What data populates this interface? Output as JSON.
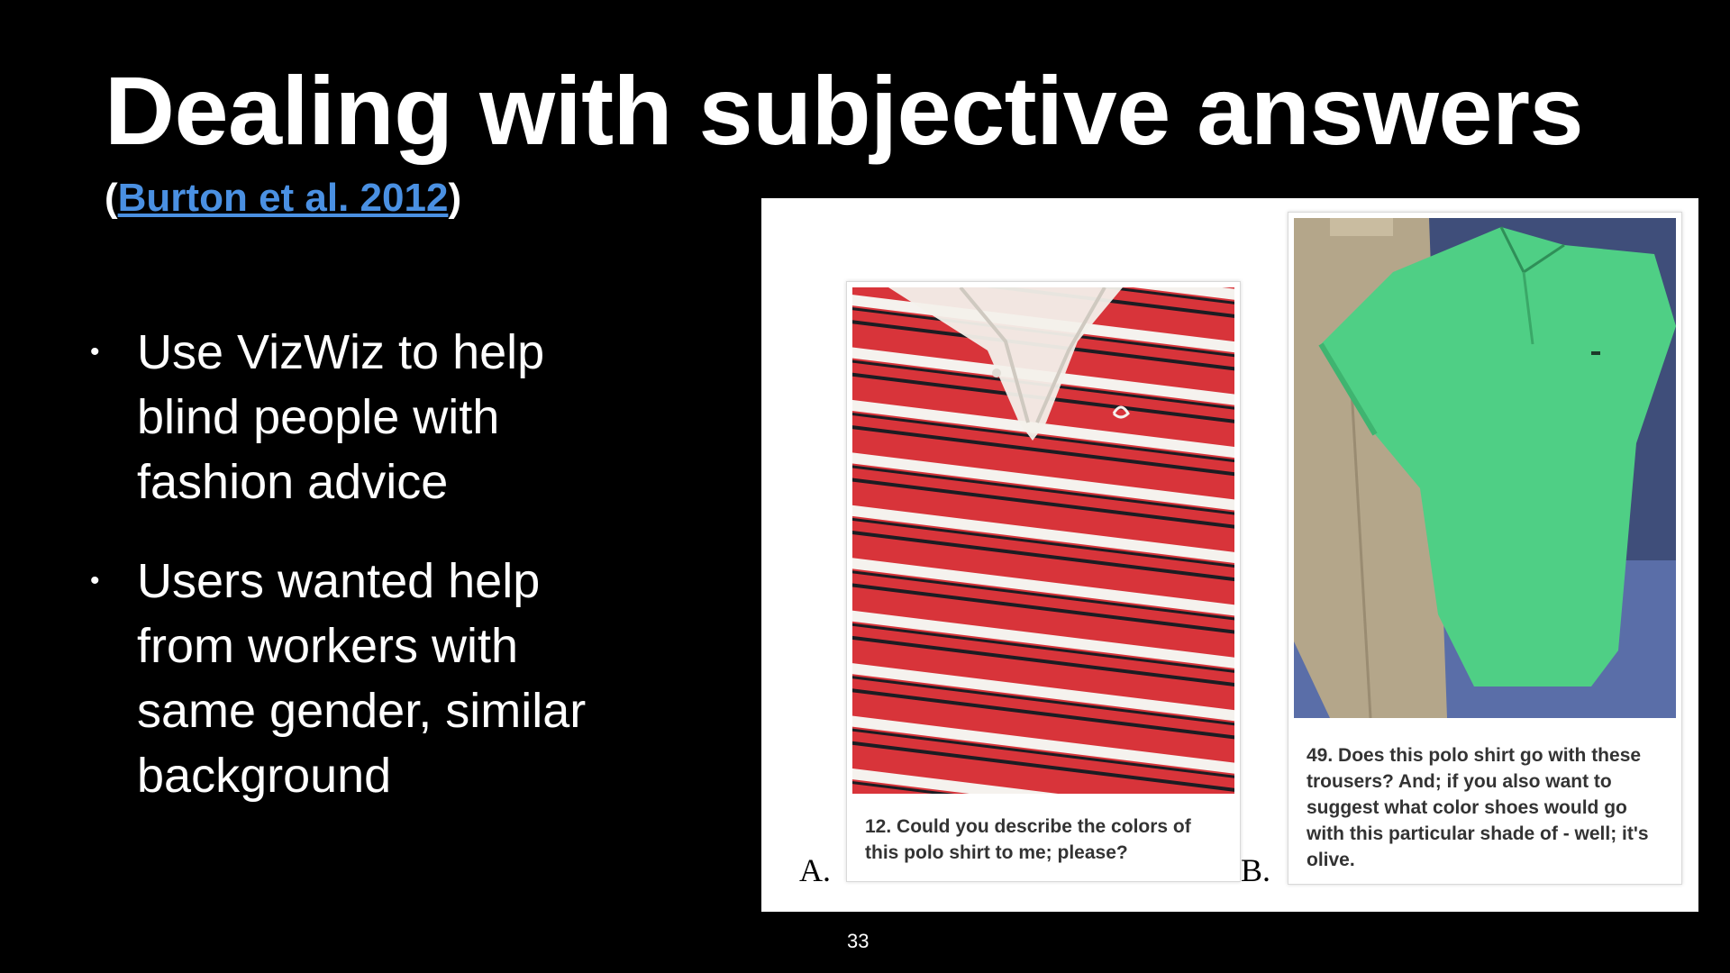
{
  "slide": {
    "title": "Dealing with subjective answers",
    "citation": {
      "open": "(",
      "link_text": "Burton et al. 2012",
      "close": ")"
    },
    "bullets": [
      "Use VizWiz to help blind people with fashion advice",
      "Users wanted help from workers with same gender, similar background"
    ],
    "bullet_glyph": "•",
    "slide_number": "33"
  },
  "figure": {
    "panel_a": {
      "label": "A.",
      "caption": "12. Could you describe the colors of this polo shirt to me; please?",
      "image_subject": "red-white-striped-polo-shirt"
    },
    "panel_b": {
      "label": "B.",
      "caption": "49. Does this polo shirt go with these trousers? And; if you also want to suggest what color shoes would go with this particular shade of - well; it's olive.",
      "image_subject": "green-polo-shirt-with-khaki-trousers"
    }
  },
  "colors": {
    "background": "#000000",
    "text": "#ffffff",
    "link": "#4a90e2",
    "shirt_red": "#d8343a",
    "shirt_green": "#4fcf85",
    "trousers_khaki": "#b4a68a"
  }
}
